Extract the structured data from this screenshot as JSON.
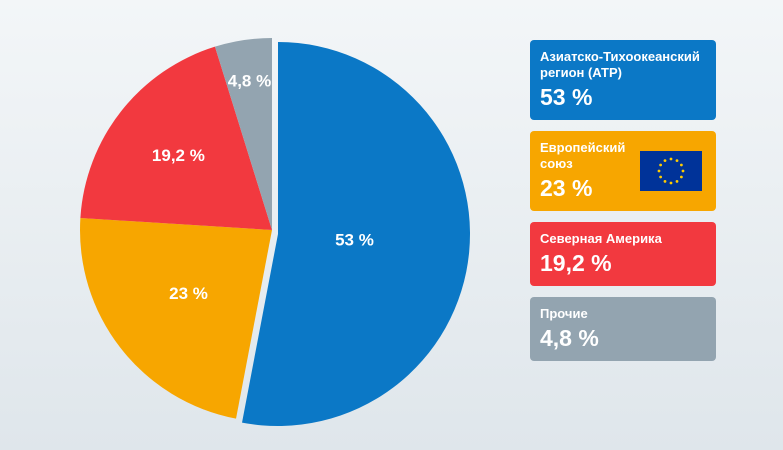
{
  "chart_data": {
    "type": "pie",
    "title": "",
    "slices": [
      {
        "label": "Азиатско-Тихоокеанский регион (АТР)",
        "value": 53,
        "display": "53 %",
        "color": "#0b78c6"
      },
      {
        "label": "Европейский союз",
        "value": 23,
        "display": "23 %",
        "color": "#f7a600"
      },
      {
        "label": "Северная Америка",
        "value": 19.2,
        "display": "19,2 %",
        "color": "#f2393f"
      },
      {
        "label": "Прочие",
        "value": 4.8,
        "display": "4,8 %",
        "color": "#93a4b0"
      }
    ],
    "legend_placement": "right"
  },
  "legend": {
    "items": [
      {
        "label": "Азиатско-Тихоокеанский регион (АТР)",
        "value": "53 %",
        "color": "#0b78c6",
        "icon": ""
      },
      {
        "label": "Европейский союз",
        "value": "23 %",
        "color": "#f7a600",
        "icon": "eu-flag-icon"
      },
      {
        "label": "Северная Америка",
        "value": "19,2 %",
        "color": "#f2393f",
        "icon": ""
      },
      {
        "label": "Прочие",
        "value": "4,8 %",
        "color": "#93a4b0",
        "icon": ""
      }
    ]
  }
}
